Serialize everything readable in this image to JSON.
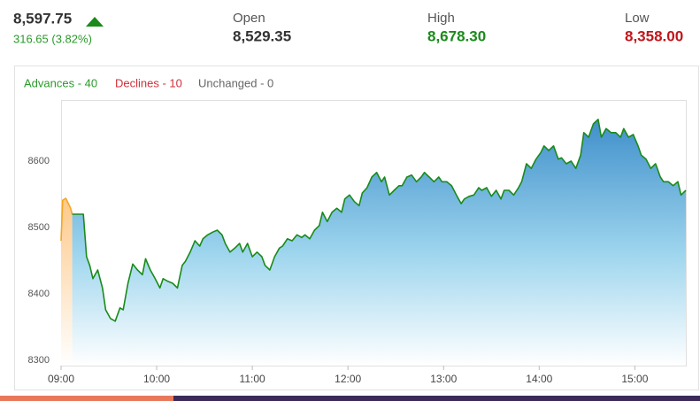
{
  "header": {
    "price": "8,597.75",
    "change": "316.65 (3.82%)",
    "open_label": "Open",
    "open": "8,529.35",
    "high_label": "High",
    "high": "8,678.30",
    "low_label": "Low",
    "low": "8,358.00"
  },
  "legend": {
    "advances": "Advances - 40",
    "declines": "Declines - 10",
    "unchanged": "Unchanged - 0"
  },
  "chart_data": {
    "type": "area",
    "xlim": [
      "09:00",
      "15:32"
    ],
    "xticks": [
      "09:00",
      "10:00",
      "11:00",
      "12:00",
      "13:00",
      "14:00",
      "15:00"
    ],
    "ylim": [
      8292,
      8692
    ],
    "yticks": [
      8300,
      8400,
      8500,
      8600
    ],
    "grid": false,
    "series": [
      {
        "color": "#f5a623",
        "area_color": "#fdd9a8",
        "x": [
          "09:00",
          "09:01",
          "09:03",
          "09:06",
          "09:07"
        ],
        "values": [
          8480,
          8541,
          8544,
          8529,
          8520
        ]
      },
      {
        "color": "#1a8a1a",
        "area_color": "#3f8fcb",
        "x": [
          "09:07",
          "09:14",
          "09:16",
          "09:18",
          "09:20",
          "09:23",
          "09:26",
          "09:28",
          "09:31",
          "09:34",
          "09:37",
          "09:39",
          "09:42",
          "09:45",
          "09:48",
          "09:51",
          "09:53",
          "09:56",
          "09:59",
          "10:02",
          "10:04",
          "10:07",
          "10:10",
          "10:13",
          "10:16",
          "10:18",
          "10:21",
          "10:24",
          "10:27",
          "10:29",
          "10:32",
          "10:35",
          "10:38",
          "10:41",
          "10:43",
          "10:46",
          "10:49",
          "10:52",
          "10:54",
          "10:57",
          "11:00",
          "11:03",
          "11:06",
          "11:08",
          "11:11",
          "11:14",
          "11:17",
          "11:19",
          "11:22",
          "11:25",
          "11:28",
          "11:31",
          "11:33",
          "11:36",
          "11:39",
          "11:42",
          "11:44",
          "11:47",
          "11:50",
          "11:53",
          "11:56",
          "11:58",
          "12:01",
          "12:04",
          "12:07",
          "12:09",
          "12:12",
          "12:15",
          "12:18",
          "12:21",
          "12:23",
          "12:26",
          "12:29",
          "12:32",
          "12:34",
          "12:37",
          "12:40",
          "12:43",
          "12:46",
          "12:48",
          "12:51",
          "12:54",
          "12:57",
          "12:59",
          "13:02",
          "13:05",
          "13:08",
          "13:11",
          "13:13",
          "13:16",
          "13:19",
          "13:22",
          "13:24",
          "13:27",
          "13:30",
          "13:33",
          "13:36",
          "13:38",
          "13:41",
          "13:44",
          "13:47",
          "13:49",
          "13:52",
          "13:55",
          "13:58",
          "14:01",
          "14:03",
          "14:06",
          "14:09",
          "14:12",
          "14:14",
          "14:17",
          "14:20",
          "14:23",
          "14:26",
          "14:28",
          "14:31",
          "14:34",
          "14:37",
          "14:39",
          "14:42",
          "14:45",
          "14:48",
          "14:51",
          "14:53",
          "14:56",
          "14:59",
          "15:02",
          "15:04",
          "15:07",
          "15:10",
          "15:13",
          "15:16",
          "15:18",
          "15:21",
          "15:24",
          "15:27",
          "15:29",
          "15:32"
        ],
        "values": [
          8520,
          8520,
          8456,
          8443,
          8423,
          8436,
          8409,
          8376,
          8363,
          8359,
          8379,
          8376,
          8416,
          8445,
          8436,
          8429,
          8453,
          8436,
          8423,
          8409,
          8423,
          8419,
          8416,
          8409,
          8443,
          8449,
          8463,
          8480,
          8472,
          8483,
          8489,
          8493,
          8496,
          8489,
          8476,
          8463,
          8469,
          8476,
          8463,
          8476,
          8456,
          8463,
          8456,
          8443,
          8436,
          8456,
          8469,
          8472,
          8483,
          8480,
          8489,
          8485,
          8489,
          8483,
          8496,
          8503,
          8523,
          8509,
          8523,
          8529,
          8523,
          8543,
          8549,
          8539,
          8533,
          8552,
          8560,
          8576,
          8583,
          8569,
          8576,
          8549,
          8556,
          8563,
          8563,
          8576,
          8579,
          8569,
          8576,
          8583,
          8576,
          8569,
          8576,
          8569,
          8569,
          8563,
          8549,
          8536,
          8543,
          8547,
          8549,
          8560,
          8556,
          8560,
          8547,
          8556,
          8543,
          8556,
          8556,
          8549,
          8560,
          8569,
          8596,
          8589,
          8603,
          8613,
          8623,
          8616,
          8623,
          8603,
          8605,
          8596,
          8600,
          8589,
          8609,
          8643,
          8636,
          8656,
          8663,
          8636,
          8649,
          8643,
          8643,
          8636,
          8649,
          8636,
          8640,
          8623,
          8609,
          8603,
          8589,
          8596,
          8576,
          8569,
          8569,
          8563,
          8569,
          8549,
          8556
        ]
      }
    ]
  }
}
